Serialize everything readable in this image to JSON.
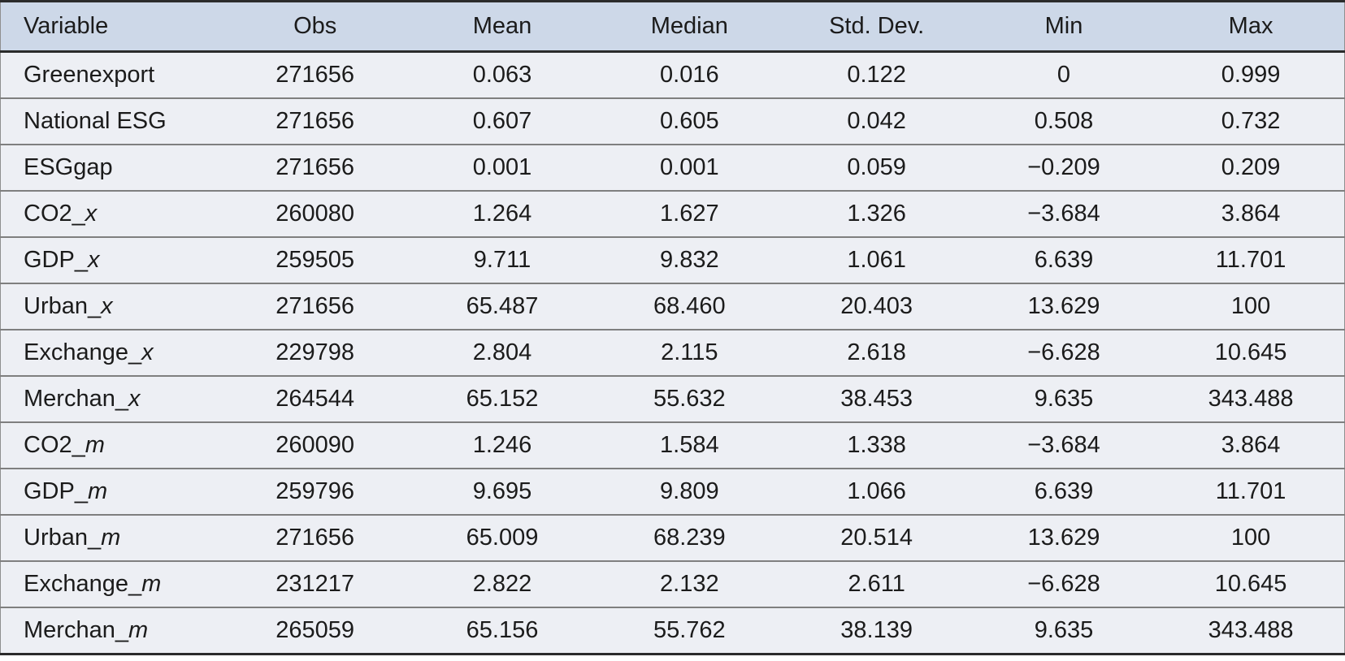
{
  "colors": {
    "header_bg": "#cdd8e8",
    "row_bg": "#edeff4",
    "border_dark": "#2b2b2b",
    "border_side": "#8f8f8f",
    "row_line": "#7f7f7f",
    "text": "#1b1b1b"
  },
  "table": {
    "columns": [
      "Variable",
      "Obs",
      "Mean",
      "Median",
      "Std. Dev.",
      "Min",
      "Max"
    ],
    "rows": [
      {
        "variable": "Greenexport",
        "suffix": "",
        "obs": "271656",
        "mean": "0.063",
        "median": "0.016",
        "std_dev": "0.122",
        "min": "0",
        "max": "0.999"
      },
      {
        "variable": "National ESG",
        "suffix": "",
        "obs": "271656",
        "mean": "0.607",
        "median": "0.605",
        "std_dev": "0.042",
        "min": "0.508",
        "max": "0.732"
      },
      {
        "variable": "ESGgap",
        "suffix": "",
        "obs": "271656",
        "mean": "0.001",
        "median": "0.001",
        "std_dev": "0.059",
        "min": "−0.209",
        "max": "0.209"
      },
      {
        "variable": "CO2_",
        "suffix": "x",
        "obs": "260080",
        "mean": "1.264",
        "median": "1.627",
        "std_dev": "1.326",
        "min": "−3.684",
        "max": "3.864"
      },
      {
        "variable": "GDP_",
        "suffix": "x",
        "obs": "259505",
        "mean": "9.711",
        "median": "9.832",
        "std_dev": "1.061",
        "min": "6.639",
        "max": "11.701"
      },
      {
        "variable": "Urban_",
        "suffix": "x",
        "obs": "271656",
        "mean": "65.487",
        "median": "68.460",
        "std_dev": "20.403",
        "min": "13.629",
        "max": "100"
      },
      {
        "variable": "Exchange_",
        "suffix": "x",
        "obs": "229798",
        "mean": "2.804",
        "median": "2.115",
        "std_dev": "2.618",
        "min": "−6.628",
        "max": "10.645"
      },
      {
        "variable": "Merchan_",
        "suffix": "x",
        "obs": "264544",
        "mean": "65.152",
        "median": "55.632",
        "std_dev": "38.453",
        "min": "9.635",
        "max": "343.488"
      },
      {
        "variable": "CO2_",
        "suffix": "m",
        "obs": "260090",
        "mean": "1.246",
        "median": "1.584",
        "std_dev": "1.338",
        "min": "−3.684",
        "max": "3.864"
      },
      {
        "variable": "GDP_",
        "suffix": "m",
        "obs": "259796",
        "mean": "9.695",
        "median": "9.809",
        "std_dev": "1.066",
        "min": "6.639",
        "max": "11.701"
      },
      {
        "variable": "Urban_",
        "suffix": "m",
        "obs": "271656",
        "mean": "65.009",
        "median": "68.239",
        "std_dev": "20.514",
        "min": "13.629",
        "max": "100"
      },
      {
        "variable": "Exchange_",
        "suffix": "m",
        "obs": "231217",
        "mean": "2.822",
        "median": "2.132",
        "std_dev": "2.611",
        "min": "−6.628",
        "max": "10.645"
      },
      {
        "variable": "Merchan_",
        "suffix": "m",
        "obs": "265059",
        "mean": "65.156",
        "median": "55.762",
        "std_dev": "38.139",
        "min": "9.635",
        "max": "343.488"
      }
    ]
  }
}
